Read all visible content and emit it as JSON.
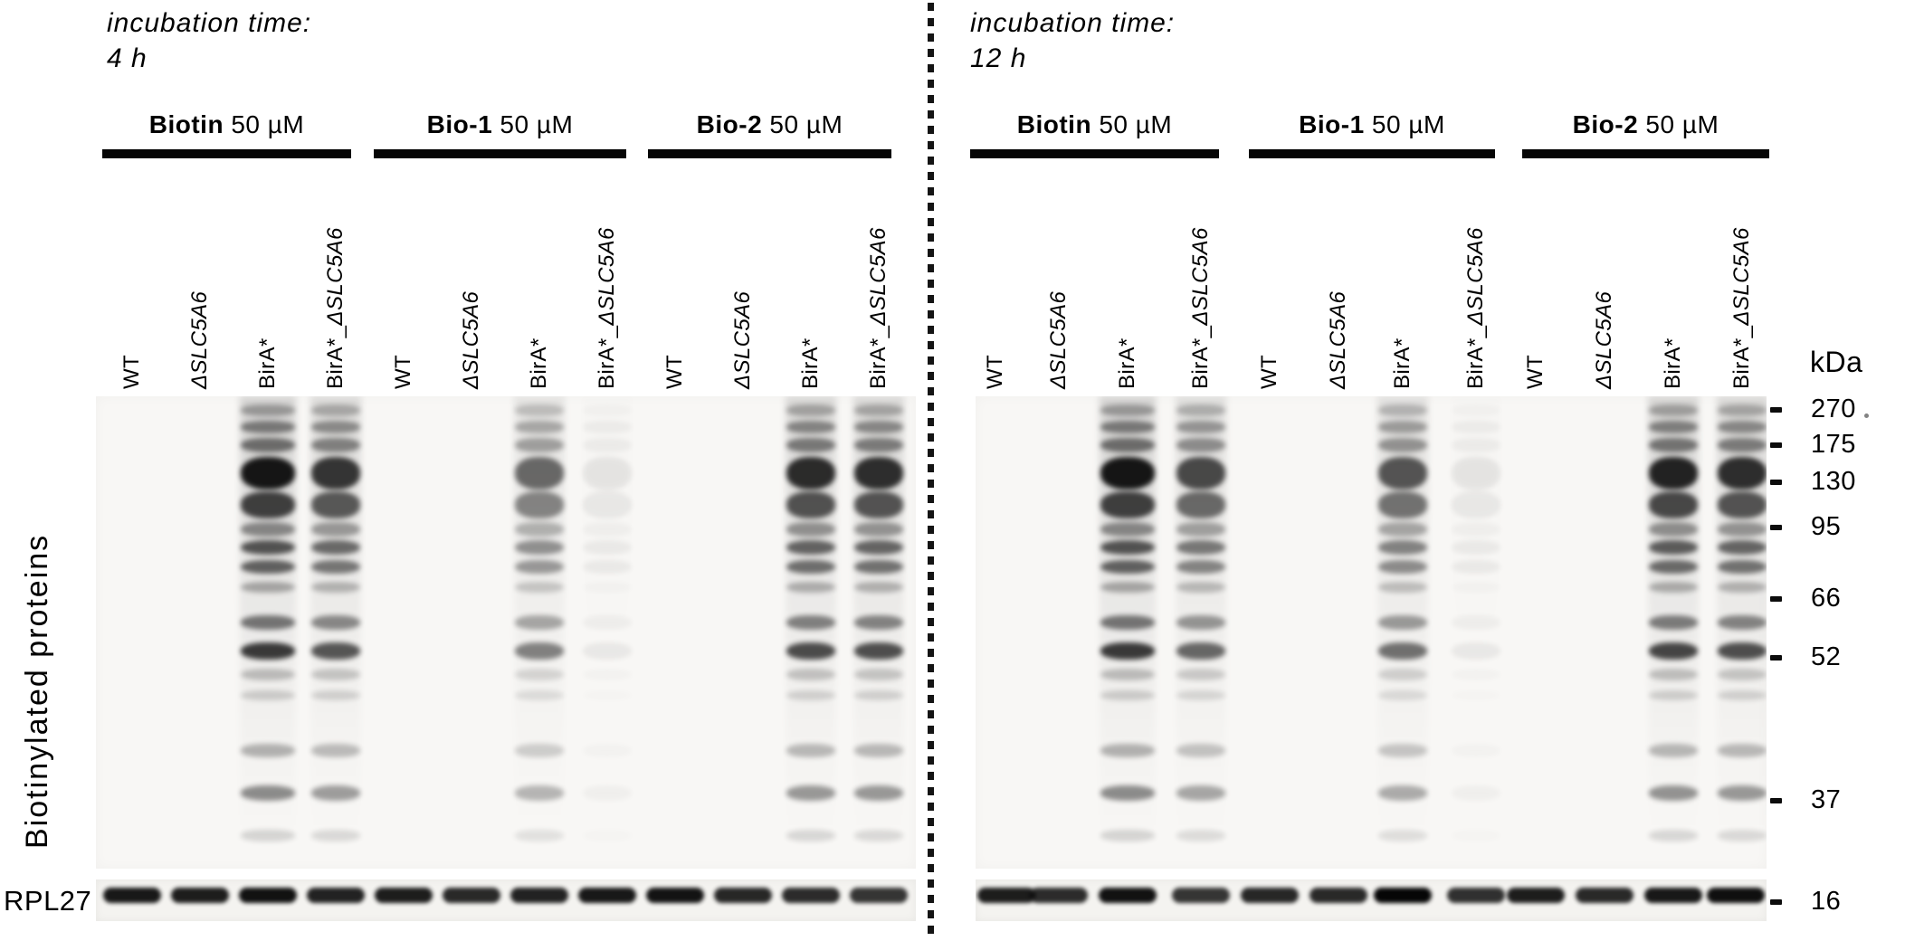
{
  "figure": {
    "side_label": "Biotinylated proteins",
    "loading_control": "RPL27",
    "marker_unit": "kDa",
    "markers": [
      "270",
      "175",
      "130",
      "95",
      "66",
      "52",
      "37",
      "16"
    ],
    "lane_genotypes": [
      {
        "prefix": "WT",
        "gene": ""
      },
      {
        "prefix": "",
        "gene": "ΔSLC5A6"
      },
      {
        "prefix": "BirA*",
        "gene": ""
      },
      {
        "prefix": "BirA*_",
        "gene": "ΔSLC5A6"
      }
    ],
    "panels": [
      {
        "incubation_label": "incubation time:",
        "incubation_time": "4 h",
        "groups": [
          {
            "name": "Biotin",
            "dose": "50 µM"
          },
          {
            "name": "Bio-1",
            "dose": "50 µM"
          },
          {
            "name": "Bio-2",
            "dose": "50 µM"
          }
        ],
        "lane_signal": [
          0,
          0,
          1.0,
          0.82,
          0,
          0,
          0.56,
          0.05,
          0,
          0,
          0.88,
          0.86
        ],
        "rpl27_intensity": [
          0.92,
          0.9,
          0.95,
          0.88,
          0.9,
          0.85,
          0.88,
          0.92,
          0.94,
          0.86,
          0.84,
          0.8
        ]
      },
      {
        "incubation_label": "incubation time:",
        "incubation_time": "12 h",
        "groups": [
          {
            "name": "Biotin",
            "dose": "50 µM"
          },
          {
            "name": "Bio-1",
            "dose": "50 µM"
          },
          {
            "name": "Bio-2",
            "dose": "50 µM"
          }
        ],
        "lane_signal": [
          0,
          0,
          1.0,
          0.72,
          0,
          0,
          0.66,
          0.05,
          0,
          0,
          0.93,
          0.86
        ],
        "rpl27_intensity": [
          0.9,
          0.84,
          0.95,
          0.8,
          0.86,
          0.85,
          1.0,
          0.82,
          0.9,
          0.85,
          0.92,
          0.96
        ]
      }
    ],
    "band_pattern": [
      {
        "y": 1.8,
        "h": 2.4,
        "a": 0.3
      },
      {
        "y": 5.2,
        "h": 2.6,
        "a": 0.46
      },
      {
        "y": 8.8,
        "h": 3.0,
        "a": 0.52
      },
      {
        "y": 12.8,
        "h": 7.0,
        "a": 0.93
      },
      {
        "y": 20.2,
        "h": 5.6,
        "a": 0.74
      },
      {
        "y": 26.6,
        "h": 3.0,
        "a": 0.42
      },
      {
        "y": 30.4,
        "h": 3.2,
        "a": 0.66
      },
      {
        "y": 34.6,
        "h": 3.0,
        "a": 0.6
      },
      {
        "y": 39.2,
        "h": 2.4,
        "a": 0.3
      },
      {
        "y": 46.4,
        "h": 3.0,
        "a": 0.52
      },
      {
        "y": 52.2,
        "h": 3.6,
        "a": 0.78
      },
      {
        "y": 57.6,
        "h": 2.6,
        "a": 0.22
      },
      {
        "y": 62.2,
        "h": 2.2,
        "a": 0.16
      },
      {
        "y": 73.6,
        "h": 2.8,
        "a": 0.28
      },
      {
        "y": 82.4,
        "h": 3.2,
        "a": 0.44
      },
      {
        "y": 91.8,
        "h": 2.4,
        "a": 0.14
      }
    ]
  }
}
